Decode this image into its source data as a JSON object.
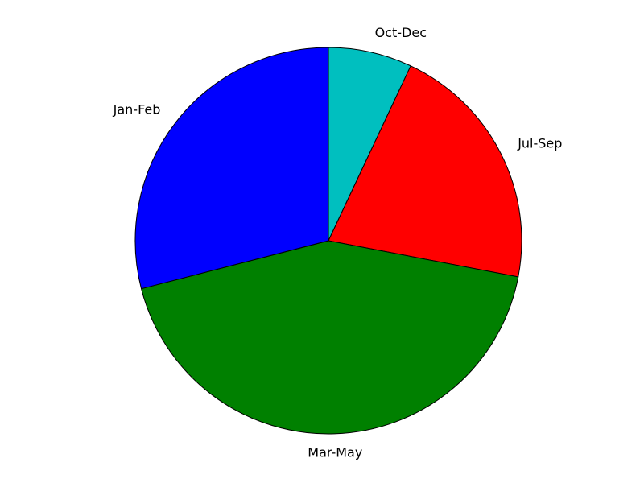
{
  "chart_data": {
    "type": "pie",
    "title": "",
    "slices": [
      {
        "label": "Oct-Dec",
        "value": 7,
        "color": "#00bfbf"
      },
      {
        "label": "Jul-Sep",
        "value": 21,
        "color": "#ff0000"
      },
      {
        "label": "Mar-May",
        "value": 43,
        "color": "#008000"
      },
      {
        "label": "Jan-Feb",
        "value": 29,
        "color": "#0000ff"
      }
    ],
    "start": "top",
    "direction": "clockwise"
  }
}
